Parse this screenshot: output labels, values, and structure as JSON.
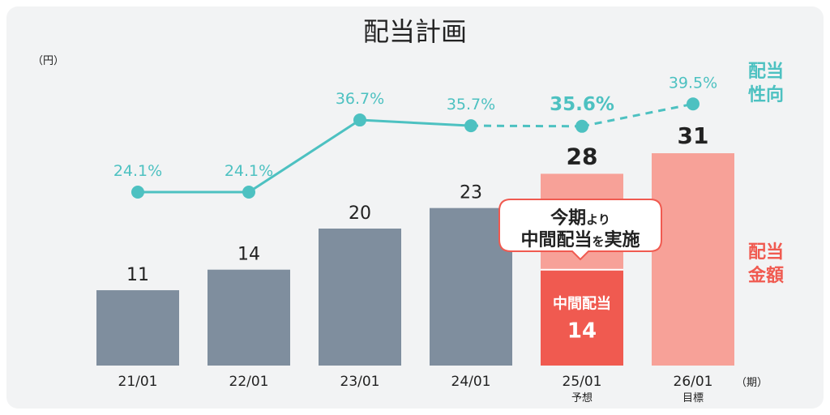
{
  "chart_data": {
    "type": "bar",
    "title": "配当計画",
    "unit_label": "（円）",
    "period_label": "（期）",
    "categories": [
      "21/01",
      "22/01",
      "23/01",
      "24/01",
      "25/01",
      "26/01"
    ],
    "category_sublabels": [
      "",
      "",
      "",
      "",
      "予想",
      "目標"
    ],
    "bars": {
      "name": "配当金額",
      "values": [
        11,
        14,
        20,
        23,
        28,
        31
      ],
      "value_labels": [
        "11",
        "14",
        "20",
        "23",
        "28",
        "31"
      ],
      "interim": {
        "index": 4,
        "value": 14,
        "label": "中間配当",
        "value_label": "14"
      }
    },
    "line": {
      "name": "配当性向",
      "values": [
        24.1,
        24.1,
        36.7,
        35.7,
        35.6,
        39.5
      ],
      "value_labels": [
        "24.1%",
        "24.1%",
        "36.7%",
        "35.7%",
        "35.6%",
        "39.5%"
      ],
      "dashed_from_index": 3
    },
    "legend_right": {
      "payout_line1": "配当",
      "payout_line2": "性向",
      "amount_line1": "配当",
      "amount_line2": "金額"
    },
    "callout": {
      "line1_main": "今期",
      "line1_small": "より",
      "line2_a": "中間配当",
      "line2_small": "を",
      "line2_b": "実施"
    },
    "colors": {
      "background_panel": "#f2f3f4",
      "actual_bar": "#7f8e9e",
      "forecast_bar": "#f7a198",
      "interim_bar": "#f05a50",
      "line": "#4dc1c1",
      "red_text": "#f05a50",
      "text": "#222222"
    }
  }
}
